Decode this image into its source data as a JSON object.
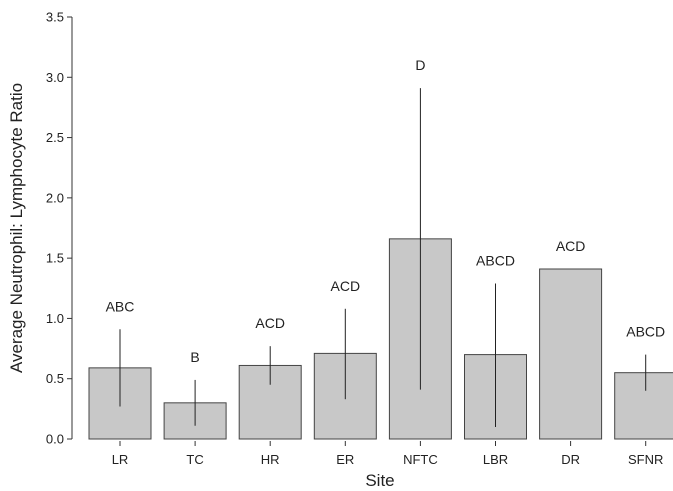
{
  "chart_data": {
    "type": "bar",
    "categories": [
      "LR",
      "TC",
      "HR",
      "ER",
      "NFTC",
      "LBR",
      "DR",
      "SFNR"
    ],
    "values": [
      0.59,
      0.3,
      0.61,
      0.71,
      1.66,
      0.7,
      1.41,
      0.55
    ],
    "error_low": [
      0.27,
      0.11,
      0.45,
      0.33,
      0.41,
      0.1,
      null,
      0.4
    ],
    "error_high": [
      0.91,
      0.49,
      0.77,
      1.08,
      2.91,
      1.29,
      null,
      0.7
    ],
    "significance_labels": [
      "ABC",
      "B",
      "ACD",
      "ACD",
      "D",
      "ABCD",
      "ACD",
      "ABCD"
    ],
    "xlabel": "Site",
    "ylabel": "Average Neutrophil: Lymphocyte Ratio",
    "ylim": [
      0,
      3.5
    ],
    "yticks": [
      "0.0",
      "0.5",
      "1.0",
      "1.5",
      "2.0",
      "2.5",
      "3.0",
      "3.5"
    ],
    "grid": false,
    "bar_color": "#c8c8c8",
    "bar_edge_color": "#444444"
  }
}
